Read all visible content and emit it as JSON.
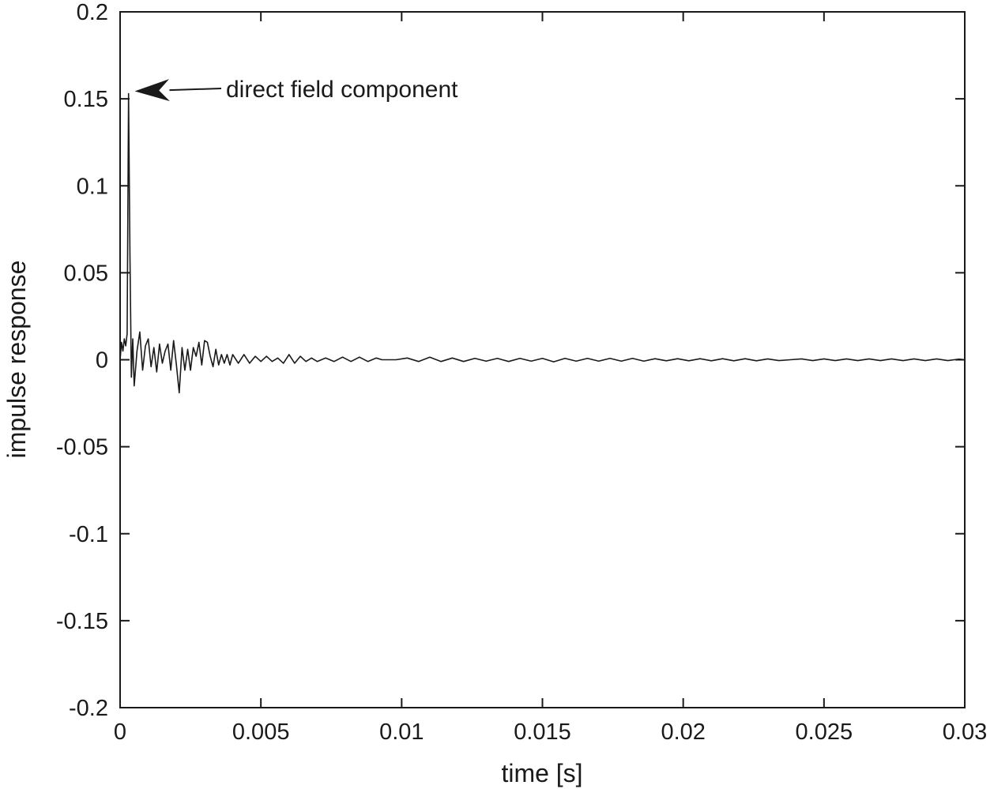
{
  "chart_data": {
    "type": "line",
    "title": "",
    "xlabel": "time [s]",
    "ylabel": "impulse response",
    "xlim": [
      0,
      0.03
    ],
    "ylim": [
      -0.2,
      0.2
    ],
    "grid": false,
    "legend": "none",
    "x_ticks": [
      0,
      0.005,
      0.01,
      0.015,
      0.02,
      0.025,
      0.03
    ],
    "x_tick_labels": [
      "0",
      "0.005",
      "0.01",
      "0.015",
      "0.02",
      "0.025",
      "0.03"
    ],
    "y_ticks": [
      -0.2,
      -0.15,
      -0.1,
      -0.05,
      0,
      0.05,
      0.1,
      0.15,
      0.2
    ],
    "y_tick_labels": [
      "-0.2",
      "-0.15",
      "-0.1",
      "-0.05",
      "0",
      "0.05",
      "0.1",
      "0.15",
      "0.2"
    ],
    "annotation": {
      "text": "direct field component",
      "x": 0.00035,
      "y": 0.153
    },
    "line_color": "#1a1a1a",
    "series": [
      {
        "x": [
          0,
          5e-05,
          0.0001,
          0.00015,
          0.0002,
          0.00025,
          0.0003,
          0.00035,
          0.0004,
          0.00045,
          0.0005,
          0.0006,
          0.0007,
          0.0008,
          0.0009,
          0.001,
          0.0011,
          0.0012,
          0.0013,
          0.0014,
          0.0015,
          0.0016,
          0.0017,
          0.0018,
          0.0019,
          0.002,
          0.0021,
          0.0022,
          0.0023,
          0.0024,
          0.0025,
          0.0026,
          0.0027,
          0.0028,
          0.0029,
          0.003,
          0.0031,
          0.0032,
          0.0033,
          0.0034,
          0.0035,
          0.0036,
          0.0037,
          0.0038,
          0.0039,
          0.004,
          0.0042,
          0.0044,
          0.0046,
          0.0048,
          0.005,
          0.0052,
          0.0054,
          0.0056,
          0.0058,
          0.006,
          0.0062,
          0.0064,
          0.0066,
          0.0068,
          0.007,
          0.0073,
          0.0076,
          0.0079,
          0.0082,
          0.0085,
          0.0088,
          0.0091,
          0.0093,
          0.0098,
          0.0102,
          0.0106,
          0.011,
          0.0114,
          0.0118,
          0.0122,
          0.0126,
          0.013,
          0.0134,
          0.0138,
          0.0142,
          0.0146,
          0.015,
          0.0154,
          0.0158,
          0.0162,
          0.0166,
          0.017,
          0.0174,
          0.0178,
          0.0182,
          0.0186,
          0.019,
          0.0194,
          0.0198,
          0.0202,
          0.0206,
          0.021,
          0.0214,
          0.0218,
          0.0222,
          0.0226,
          0.023,
          0.0234,
          0.0238,
          0.0242,
          0.0246,
          0.025,
          0.0254,
          0.0258,
          0.0262,
          0.0266,
          0.027,
          0.0274,
          0.0278,
          0.0282,
          0.0286,
          0.029,
          0.0294,
          0.0298,
          0.03
        ],
        "y": [
          0.0,
          0.01,
          0.005,
          0.012,
          0.008,
          0.015,
          0.153,
          0.06,
          -0.01,
          0.012,
          -0.015,
          0.005,
          0.016,
          -0.006,
          0.008,
          0.012,
          -0.004,
          0.007,
          -0.007,
          0.009,
          -0.002,
          0.005,
          0.009,
          -0.006,
          0.011,
          -0.003,
          -0.019,
          0.007,
          -0.006,
          0.006,
          -0.006,
          0.007,
          0.002,
          0.01,
          -0.003,
          0.011,
          0.01,
          0.002,
          -0.004,
          0.006,
          -0.003,
          0.003,
          -0.002,
          0.003,
          -0.003,
          0.003,
          -0.002,
          0.003,
          -0.002,
          0.002,
          -0.001,
          0.002,
          -0.001,
          0.001,
          -0.002,
          0.003,
          -0.002,
          0.002,
          -0.001,
          0.001,
          -0.001,
          0.001,
          -0.001,
          0.0015,
          -0.001,
          0.0015,
          -0.001,
          0.001,
          0.0,
          0.0,
          0.001,
          -0.001,
          0.0015,
          -0.001,
          0.001,
          -0.001,
          0.0008,
          -0.0008,
          0.0008,
          -0.001,
          0.0008,
          -0.0008,
          0.0008,
          -0.0012,
          0.0008,
          -0.0008,
          0.0008,
          -0.0008,
          0.0008,
          -0.0008,
          0.0008,
          -0.0008,
          0.0006,
          -0.0006,
          0.0006,
          -0.0006,
          0.0006,
          -0.0006,
          0.0006,
          -0.0006,
          0.0006,
          -0.0006,
          0.0005,
          -0.0005,
          0.0,
          0.0005,
          -0.0005,
          0.0005,
          -0.0005,
          0.0005,
          -0.0005,
          0.0005,
          -0.0005,
          0.0005,
          -0.0005,
          0.0005,
          -0.0005,
          0.0005,
          -0.0005,
          0.0004,
          0.0
        ]
      }
    ]
  }
}
